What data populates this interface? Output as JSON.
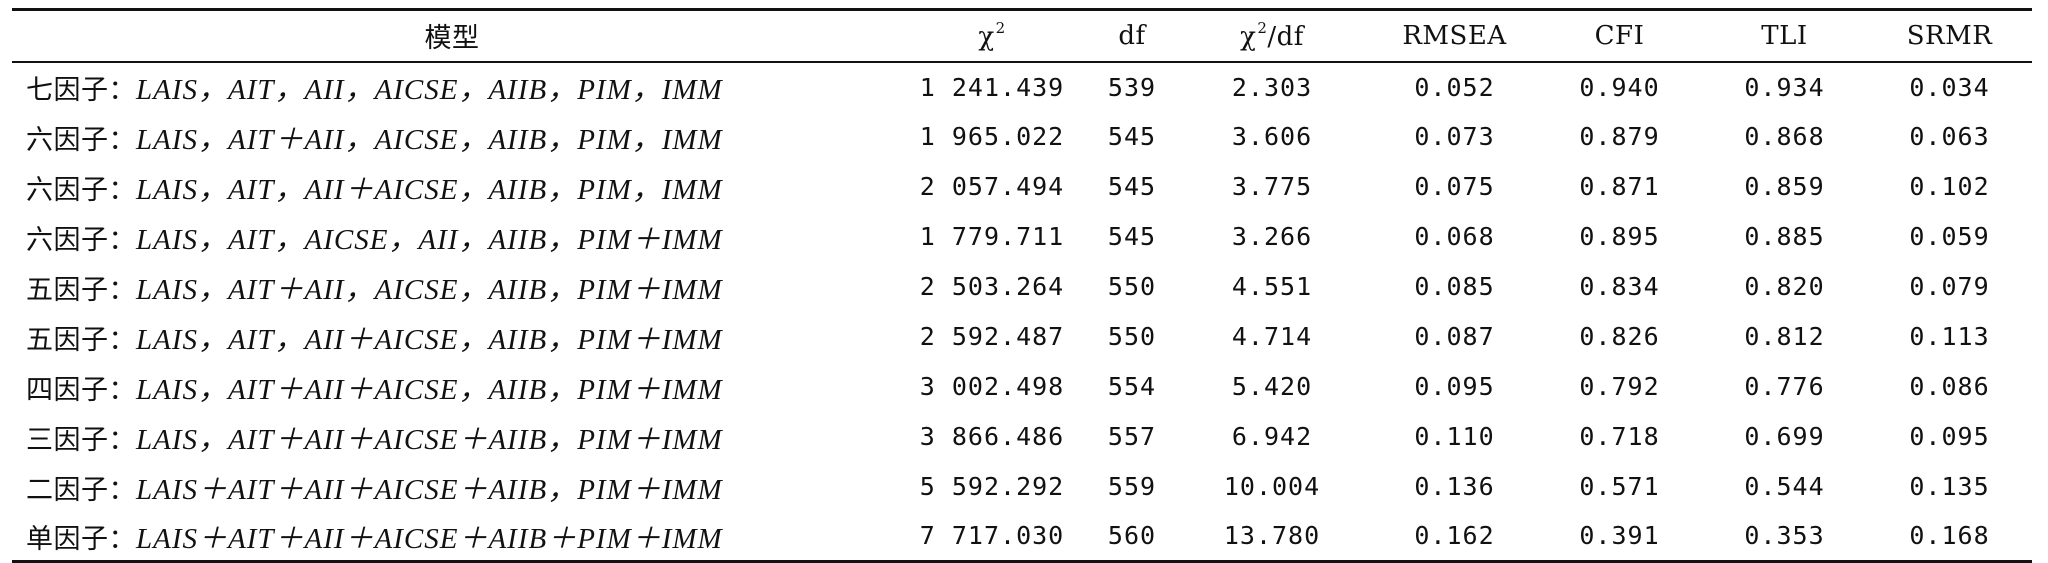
{
  "table": {
    "headers": {
      "model": "模型",
      "chi_symbol": "χ",
      "chi_sup": "2",
      "df": "df",
      "chi_df_symbol": "χ",
      "chi_df_sup": "2",
      "chi_df_suffix": "/df",
      "rmsea": "RMSEA",
      "cfi": "CFI",
      "tli": "TLI",
      "srmr": "SRMR"
    },
    "rows": [
      {
        "prefix": "七因子：",
        "vars": "LAIS，AIT，AII，AICSE，AIIB，PIM，IMM",
        "chi2": "1 241.439",
        "df": "539",
        "chi2df": "2.303",
        "rmsea": "0.052",
        "cfi": "0.940",
        "tli": "0.934",
        "srmr": "0.034"
      },
      {
        "prefix": "六因子：",
        "vars": "LAIS，AIT＋AII，AICSE，AIIB，PIM，IMM",
        "chi2": "1 965.022",
        "df": "545",
        "chi2df": "3.606",
        "rmsea": "0.073",
        "cfi": "0.879",
        "tli": "0.868",
        "srmr": "0.063"
      },
      {
        "prefix": "六因子：",
        "vars": "LAIS，AIT，AII＋AICSE，AIIB，PIM，IMM",
        "chi2": "2 057.494",
        "df": "545",
        "chi2df": "3.775",
        "rmsea": "0.075",
        "cfi": "0.871",
        "tli": "0.859",
        "srmr": "0.102"
      },
      {
        "prefix": "六因子：",
        "vars": "LAIS，AIT，AICSE，AII，AIIB，PIM＋IMM",
        "chi2": "1 779.711",
        "df": "545",
        "chi2df": "3.266",
        "rmsea": "0.068",
        "cfi": "0.895",
        "tli": "0.885",
        "srmr": "0.059"
      },
      {
        "prefix": "五因子：",
        "vars": "LAIS，AIT＋AII，AICSE，AIIB，PIM＋IMM",
        "chi2": "2 503.264",
        "df": "550",
        "chi2df": "4.551",
        "rmsea": "0.085",
        "cfi": "0.834",
        "tli": "0.820",
        "srmr": "0.079"
      },
      {
        "prefix": "五因子：",
        "vars": "LAIS，AIT，AII＋AICSE，AIIB，PIM＋IMM",
        "chi2": "2 592.487",
        "df": "550",
        "chi2df": "4.714",
        "rmsea": "0.087",
        "cfi": "0.826",
        "tli": "0.812",
        "srmr": "0.113"
      },
      {
        "prefix": "四因子：",
        "vars": "LAIS，AIT＋AII＋AICSE，AIIB，PIM＋IMM",
        "chi2": "3 002.498",
        "df": "554",
        "chi2df": "5.420",
        "rmsea": "0.095",
        "cfi": "0.792",
        "tli": "0.776",
        "srmr": "0.086"
      },
      {
        "prefix": "三因子：",
        "vars": "LAIS，AIT＋AII＋AICSE＋AIIB，PIM＋IMM",
        "chi2": "3 866.486",
        "df": "557",
        "chi2df": "6.942",
        "rmsea": "0.110",
        "cfi": "0.718",
        "tli": "0.699",
        "srmr": "0.095"
      },
      {
        "prefix": "二因子：",
        "vars": "LAIS＋AIT＋AII＋AICSE＋AIIB，PIM＋IMM",
        "chi2": "5 592.292",
        "df": "559",
        "chi2df": "10.004",
        "rmsea": "0.136",
        "cfi": "0.571",
        "tli": "0.544",
        "srmr": "0.135"
      },
      {
        "prefix": "单因子：",
        "vars": "LAIS＋AIT＋AII＋AICSE＋AIIB＋PIM＋IMM",
        "chi2": "7 717.030",
        "df": "560",
        "chi2df": "13.780",
        "rmsea": "0.162",
        "cfi": "0.391",
        "tli": "0.353",
        "srmr": "0.168"
      }
    ]
  }
}
